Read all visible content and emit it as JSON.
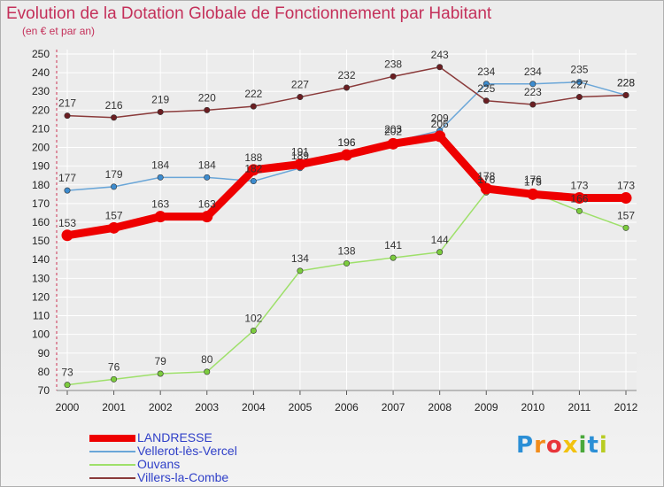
{
  "header": {
    "title": "Evolution de la Dotation Globale de Fonctionnement par Habitant",
    "subtitle": "(en € et par an)"
  },
  "logo": {
    "text": "Proxiti",
    "letters": [
      "P",
      "r",
      "o",
      "x",
      "i",
      "t",
      "i"
    ],
    "colors": [
      "#2b8fd6",
      "#f28c1a",
      "#e8353a",
      "#f2c20f",
      "#4aa83b",
      "#2b8fd6",
      "#b8cc22"
    ]
  },
  "chart_data": {
    "type": "line",
    "title": "Evolution de la Dotation Globale de Fonctionnement par Habitant",
    "subtitle": "(en € et par an)",
    "xlabel": "",
    "ylabel": "",
    "categories": [
      "2000",
      "2001",
      "2002",
      "2003",
      "2004",
      "2005",
      "2006",
      "2007",
      "2008",
      "2009",
      "2010",
      "2011",
      "2012"
    ],
    "ylim": [
      70,
      250
    ],
    "yticks": [
      70,
      80,
      90,
      100,
      110,
      120,
      130,
      140,
      150,
      160,
      170,
      180,
      190,
      200,
      210,
      220,
      230,
      240,
      250
    ],
    "grid": true,
    "legend_position": "bottom-left",
    "series": [
      {
        "name": "LANDRESSE",
        "color": "#ee0000",
        "emphasis": true,
        "values": [
          153,
          157,
          163,
          163,
          188,
          191,
          196,
          202,
          206,
          178,
          175,
          173,
          173
        ]
      },
      {
        "name": "Vellerot-lès-Vercel",
        "color": "#6aa6d8",
        "marker_color": "#3d8ccf",
        "values": [
          177,
          179,
          184,
          184,
          182,
          189,
          196,
          203,
          209,
          234,
          234,
          235,
          228
        ]
      },
      {
        "name": "Ouvans",
        "color": "#9ee06a",
        "marker_color": "#7ccc3e",
        "values": [
          73,
          76,
          79,
          80,
          102,
          134,
          138,
          141,
          144,
          176,
          176,
          166,
          157
        ]
      },
      {
        "name": "Villers-la-Combe",
        "color": "#8a3a3a",
        "marker_color": "#6b1e22",
        "values": [
          217,
          216,
          219,
          220,
          222,
          227,
          232,
          238,
          243,
          225,
          223,
          227,
          228
        ]
      }
    ]
  }
}
